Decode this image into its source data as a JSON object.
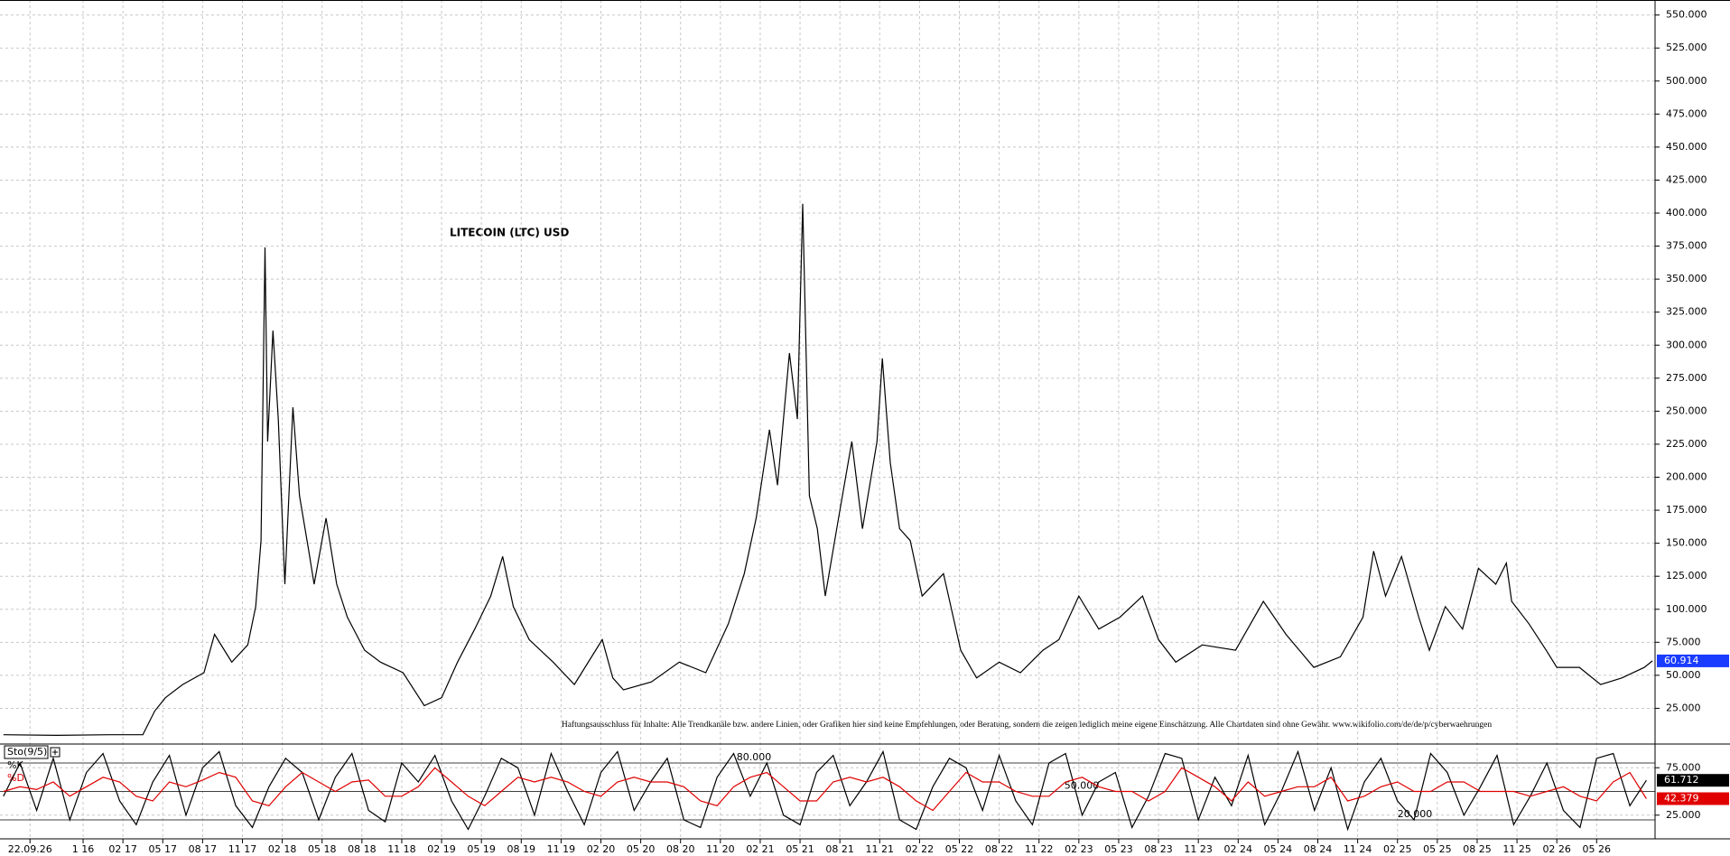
{
  "chart_data": [
    {
      "type": "line",
      "title": "LITECOIN (LTC) USD",
      "annotation": "Haftungsausschluss für Inhalte: Alle Trendkanäle bzw. andere Linien, oder Grafiken hier sind keine Empfehlungen, oder Beratung, sondern die zeigen lediglich meine eigene Einschätzung. Alle Chartdaten sind ohne Gewähr. www.wikifolio.com/de/de/p/cyberwaehrungen",
      "color": "#000000",
      "label_color": "#1a3cff",
      "grid": true,
      "xlim": [
        3.74,
        128.4
      ],
      "ylim": [
        0,
        560
      ],
      "yticks": [
        {
          "value": 25,
          "label": "25.000"
        },
        {
          "value": 50,
          "label": "50.000"
        },
        {
          "value": 75,
          "label": "75.000"
        },
        {
          "value": 100,
          "label": "100.000"
        },
        {
          "value": 125,
          "label": "125.000"
        },
        {
          "value": 150,
          "label": "150.000"
        },
        {
          "value": 175,
          "label": "175.000"
        },
        {
          "value": 200,
          "label": "200.000"
        },
        {
          "value": 225,
          "label": "225.000"
        },
        {
          "value": 250,
          "label": "250.000"
        },
        {
          "value": 275,
          "label": "275.000"
        },
        {
          "value": 300,
          "label": "300.000"
        },
        {
          "value": 325,
          "label": "325.000"
        },
        {
          "value": 350,
          "label": "350.000"
        },
        {
          "value": 375,
          "label": "375.000"
        },
        {
          "value": 400,
          "label": "400.000"
        },
        {
          "value": 425,
          "label": "425.000"
        },
        {
          "value": 450,
          "label": "450.000"
        },
        {
          "value": 475,
          "label": "475.000"
        },
        {
          "value": 500,
          "label": "500.000"
        },
        {
          "value": 525,
          "label": "525.000"
        },
        {
          "value": 550,
          "label": "550.000"
        }
      ],
      "x": [
        4,
        8,
        12,
        14.5,
        15.4,
        16.2,
        17.5,
        19.1,
        19.9,
        21.2,
        22.4,
        23,
        23.4,
        23.7,
        23.9,
        24.3,
        24.7,
        25.2,
        25.8,
        26.3,
        27,
        27.4,
        28.3,
        29.1,
        29.9,
        31.2,
        32.4,
        34.1,
        35.7,
        37,
        38.2,
        39.5,
        40.7,
        41.6,
        42.4,
        43.6,
        45.4,
        47,
        49.1,
        49.9,
        50.7,
        52.8,
        54.9,
        56.9,
        58.6,
        59.8,
        60.7,
        61.7,
        62.3,
        63.2,
        63.8,
        64.2,
        64.7,
        65.3,
        65.9,
        66.9,
        67.9,
        68.7,
        69.8,
        70.2,
        70.8,
        71.5,
        72.3,
        73.2,
        74.8,
        76.1,
        77.3,
        79,
        80.6,
        82.3,
        83.5,
        85,
        86.5,
        88.1,
        89.8,
        91,
        92.3,
        94.3,
        96.8,
        98.9,
        100.6,
        102.7,
        104.7,
        106.4,
        107.2,
        108.1,
        109.3,
        110.6,
        111.4,
        112.6,
        113.9,
        115.1,
        116.4,
        117.2,
        117.6,
        118.9,
        120.2,
        121,
        122.7,
        124.3,
        125.9,
        127.6,
        128.2
      ],
      "values": [
        5,
        4.5,
        5,
        5,
        23,
        33,
        43,
        52,
        81,
        60,
        73,
        102,
        152,
        374,
        227,
        311,
        244,
        119,
        253,
        186,
        144,
        119,
        169,
        119,
        94,
        69,
        60,
        52,
        27,
        33,
        60,
        85,
        110,
        140,
        102,
        77,
        60,
        43,
        77,
        48,
        39,
        45,
        60,
        52,
        89,
        127,
        169,
        236,
        194,
        294,
        244,
        407,
        186,
        161,
        110,
        169,
        227,
        161,
        227,
        290,
        211,
        161,
        152,
        110,
        127,
        69,
        48,
        60,
        52,
        69,
        77,
        110,
        85,
        94,
        110,
        77,
        60,
        73,
        69,
        106,
        81,
        56,
        64,
        94,
        144,
        110,
        140,
        94,
        69,
        102,
        85,
        131,
        119,
        135,
        106,
        89,
        69,
        56,
        56,
        43,
        48,
        56,
        60.914
      ]
    },
    {
      "type": "line",
      "title": "Sto(9/5)",
      "grid": true,
      "xlim": [
        3.74,
        128.4
      ],
      "ylim": [
        0,
        100
      ],
      "yticks": [
        {
          "value": 25,
          "label": "25.000"
        },
        {
          "value": 75,
          "label": "75.000"
        }
      ],
      "levels": [
        {
          "value": 80,
          "label": "80.000"
        },
        {
          "value": 50,
          "label": "50.000"
        },
        {
          "value": 20,
          "label": "20.000"
        }
      ],
      "xticks": [
        {
          "value": 6,
          "label": "22.09.26"
        },
        {
          "value": 10,
          "label": "1 16"
        },
        {
          "value": 13,
          "label": "02 17"
        },
        {
          "value": 16,
          "label": "05 17"
        },
        {
          "value": 19,
          "label": "08 17"
        },
        {
          "value": 22,
          "label": "11 17"
        },
        {
          "value": 25,
          "label": "02 18"
        },
        {
          "value": 28,
          "label": "05 18"
        },
        {
          "value": 31,
          "label": "08 18"
        },
        {
          "value": 34,
          "label": "11 18"
        },
        {
          "value": 37,
          "label": "02 19"
        },
        {
          "value": 40,
          "label": "05 19"
        },
        {
          "value": 43,
          "label": "08 19"
        },
        {
          "value": 46,
          "label": "11 19"
        },
        {
          "value": 49,
          "label": "02 20"
        },
        {
          "value": 52,
          "label": "05 20"
        },
        {
          "value": 55,
          "label": "08 20"
        },
        {
          "value": 58,
          "label": "11 20"
        },
        {
          "value": 61,
          "label": "02 21"
        },
        {
          "value": 64,
          "label": "05 21"
        },
        {
          "value": 67,
          "label": "08 21"
        },
        {
          "value": 70,
          "label": "11 21"
        },
        {
          "value": 73,
          "label": "02 22"
        },
        {
          "value": 76,
          "label": "05 22"
        },
        {
          "value": 79,
          "label": "08 22"
        },
        {
          "value": 82,
          "label": "11 22"
        },
        {
          "value": 85,
          "label": "02 23"
        },
        {
          "value": 88,
          "label": "05 23"
        },
        {
          "value": 91,
          "label": "08 23"
        },
        {
          "value": 94,
          "label": "11 23"
        },
        {
          "value": 97,
          "label": "02 24"
        },
        {
          "value": 100,
          "label": "05 24"
        },
        {
          "value": 103,
          "label": "08 24"
        },
        {
          "value": 106,
          "label": "11 24"
        },
        {
          "value": 109,
          "label": "02 25"
        },
        {
          "value": 112,
          "label": "05 25"
        },
        {
          "value": 115,
          "label": "08 25"
        },
        {
          "value": 118,
          "label": "11 25"
        },
        {
          "value": 121,
          "label": "02 26"
        },
        {
          "value": 124,
          "label": "05 26"
        }
      ],
      "x": [
        4,
        5.25,
        6.5,
        7.75,
        9,
        10.25,
        11.5,
        12.75,
        14,
        15.25,
        16.5,
        17.75,
        19,
        20.25,
        21.5,
        22.75,
        24,
        25.25,
        26.5,
        27.75,
        29,
        30.25,
        31.5,
        32.75,
        34,
        35.25,
        36.5,
        37.75,
        39,
        40.25,
        41.5,
        42.75,
        44,
        45.25,
        46.5,
        47.75,
        49,
        50.25,
        51.5,
        52.75,
        54,
        55.25,
        56.5,
        57.75,
        59,
        60.25,
        61.5,
        62.75,
        64,
        65.25,
        66.5,
        67.75,
        69,
        70.25,
        71.5,
        72.75,
        74,
        75.25,
        76.5,
        77.75,
        79,
        80.25,
        81.5,
        82.75,
        84,
        85.25,
        86.5,
        87.75,
        89,
        90.25,
        91.5,
        92.75,
        94,
        95.25,
        96.5,
        97.75,
        99,
        100.25,
        101.5,
        102.75,
        104,
        105.25,
        106.5,
        107.75,
        109,
        110.25,
        111.5,
        112.75,
        114,
        115.25,
        116.5,
        117.75,
        119,
        120.25,
        121.5,
        122.75,
        124,
        125.25,
        126.5,
        127.75
      ],
      "series": [
        {
          "name": "%K",
          "color": "#000000",
          "values": [
            45,
            80,
            30,
            85,
            20,
            70,
            90,
            40,
            15,
            60,
            88,
            25,
            75,
            92,
            35,
            12,
            55,
            85,
            70,
            20,
            65,
            90,
            30,
            18,
            80,
            60,
            88,
            40,
            10,
            45,
            85,
            75,
            25,
            90,
            50,
            15,
            70,
            92,
            30,
            60,
            85,
            20,
            12,
            65,
            90,
            45,
            80,
            25,
            15,
            70,
            88,
            35,
            60,
            92,
            20,
            10,
            55,
            85,
            75,
            30,
            88,
            40,
            15,
            80,
            90,
            25,
            60,
            70,
            12,
            45,
            90,
            85,
            20,
            65,
            35,
            88,
            15,
            50,
            92,
            30,
            75,
            10,
            60,
            85,
            40,
            20,
            90,
            70,
            25,
            55,
            88,
            15,
            45,
            80,
            30,
            12,
            85,
            90,
            35,
            61.712
          ]
        },
        {
          "name": "%D",
          "color": "#e00000",
          "values": [
            50,
            55,
            52,
            60,
            45,
            55,
            65,
            60,
            45,
            40,
            60,
            55,
            62,
            70,
            65,
            40,
            35,
            55,
            70,
            60,
            50,
            60,
            62,
            45,
            45,
            55,
            75,
            60,
            45,
            35,
            50,
            65,
            60,
            65,
            60,
            50,
            45,
            60,
            65,
            60,
            60,
            55,
            40,
            35,
            55,
            65,
            70,
            55,
            40,
            40,
            60,
            65,
            60,
            65,
            55,
            40,
            30,
            50,
            70,
            60,
            60,
            50,
            45,
            45,
            60,
            65,
            55,
            50,
            50,
            40,
            50,
            75,
            65,
            55,
            40,
            60,
            45,
            50,
            55,
            55,
            65,
            40,
            45,
            55,
            60,
            50,
            50,
            60,
            60,
            50,
            50,
            50,
            45,
            50,
            55,
            45,
            40,
            60,
            70,
            42.379
          ]
        }
      ]
    }
  ]
}
